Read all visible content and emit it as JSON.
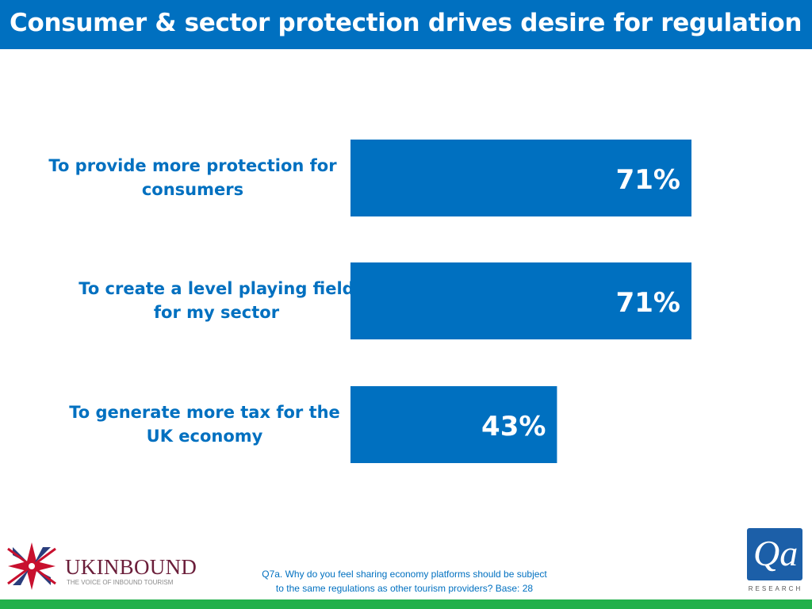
{
  "header": {
    "title": "Consumer & sector protection drives desire for regulation"
  },
  "colors": {
    "accent": "#0070c0",
    "bar": "#0070c0",
    "footer_strip": "#22b04b"
  },
  "chart_data": {
    "type": "bar",
    "orientation": "horizontal",
    "categories": [
      "To provide more protection for consumers",
      "To create a level playing field for my sector",
      "To generate more tax for the UK economy"
    ],
    "values": [
      71,
      71,
      43
    ],
    "data_labels": [
      "71%",
      "71%",
      "43%"
    ],
    "unit": "%",
    "xlim": [
      0,
      100
    ],
    "grid": false,
    "legend": "none"
  },
  "footnote": {
    "line1": "Q7a. Why do you feel sharing economy platforms should be subject",
    "line2": "to the same regulations as other tourism providers? Base: 28"
  },
  "branding": {
    "left_logo_name": "UKINBOUND",
    "left_logo_tagline": "THE VOICE OF INBOUND TOURISM",
    "right_logo_mark": "Qa",
    "right_logo_sub": "RESEARCH"
  }
}
